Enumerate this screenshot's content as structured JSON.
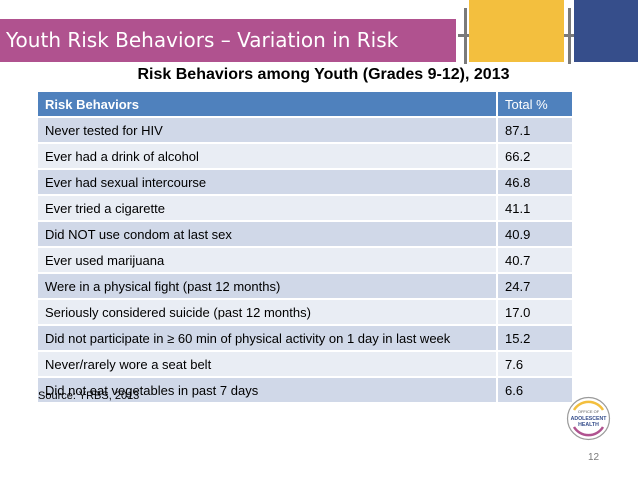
{
  "slide": {
    "title": "Youth Risk Behaviors – Variation in Risk",
    "page_number": "12",
    "colors": {
      "title_bar": "#b0528f",
      "accent_gold": "#f3bf3e",
      "accent_blue": "#364e8b",
      "table_header": "#4f81bd"
    }
  },
  "table": {
    "caption": "Risk Behaviors among Youth (Grades 9-12), 2013",
    "headers": [
      "Risk Behaviors",
      "Total %"
    ],
    "rows": [
      {
        "behavior": "Never tested for HIV",
        "total": "87.1"
      },
      {
        "behavior": "Ever had a drink of alcohol",
        "total": "66.2"
      },
      {
        "behavior": "Ever had sexual intercourse",
        "total": "46.8"
      },
      {
        "behavior": "Ever tried a cigarette",
        "total": "41.1"
      },
      {
        "behavior": "Did NOT use condom at last sex",
        "total": "40.9"
      },
      {
        "behavior": "Ever used marijuana",
        "total": "40.7"
      },
      {
        "behavior": "Were in a physical fight (past 12 months)",
        "total": "24.7"
      },
      {
        "behavior": "Seriously considered suicide (past 12 months)",
        "total": "17.0"
      },
      {
        "behavior": "Did not participate in ≥ 60 min of physical activity on 1 day in last week",
        "total": "15.2"
      },
      {
        "behavior": "Never/rarely wore a seat belt",
        "total": "7.6"
      },
      {
        "behavior": "Did not eat vegetables in past 7 days",
        "total": "6.6"
      }
    ]
  },
  "source": "Source: YRBS, 2013",
  "logo": {
    "text_top": "OFFICE OF",
    "text_main": "ADOLESCENT",
    "text_bottom": "HEALTH"
  }
}
